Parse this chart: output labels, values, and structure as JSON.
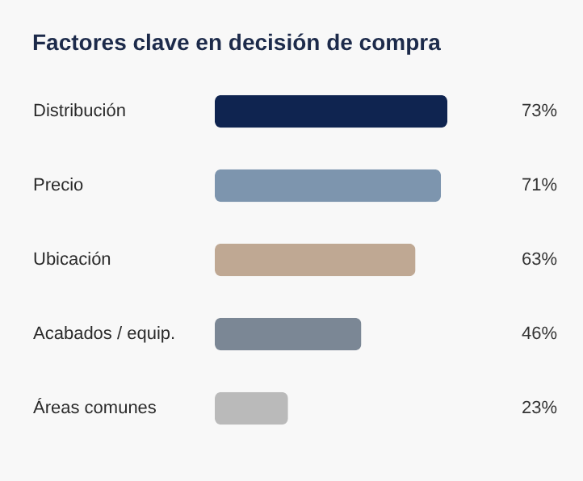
{
  "chart_data": {
    "type": "bar",
    "orientation": "horizontal",
    "title": "Factores clave en decisión de compra",
    "categories": [
      "Distribución",
      "Precio",
      "Ubicación",
      "Acabados / equip.",
      "Áreas comunes"
    ],
    "values": [
      73,
      71,
      63,
      46,
      23
    ],
    "colors": [
      "#0f2450",
      "#7d95ae",
      "#bfa893",
      "#7b8795",
      "#bababa"
    ],
    "value_labels": [
      "73%",
      "71%",
      "63%",
      "46%",
      "23%"
    ],
    "tick_labels": "y"
  }
}
